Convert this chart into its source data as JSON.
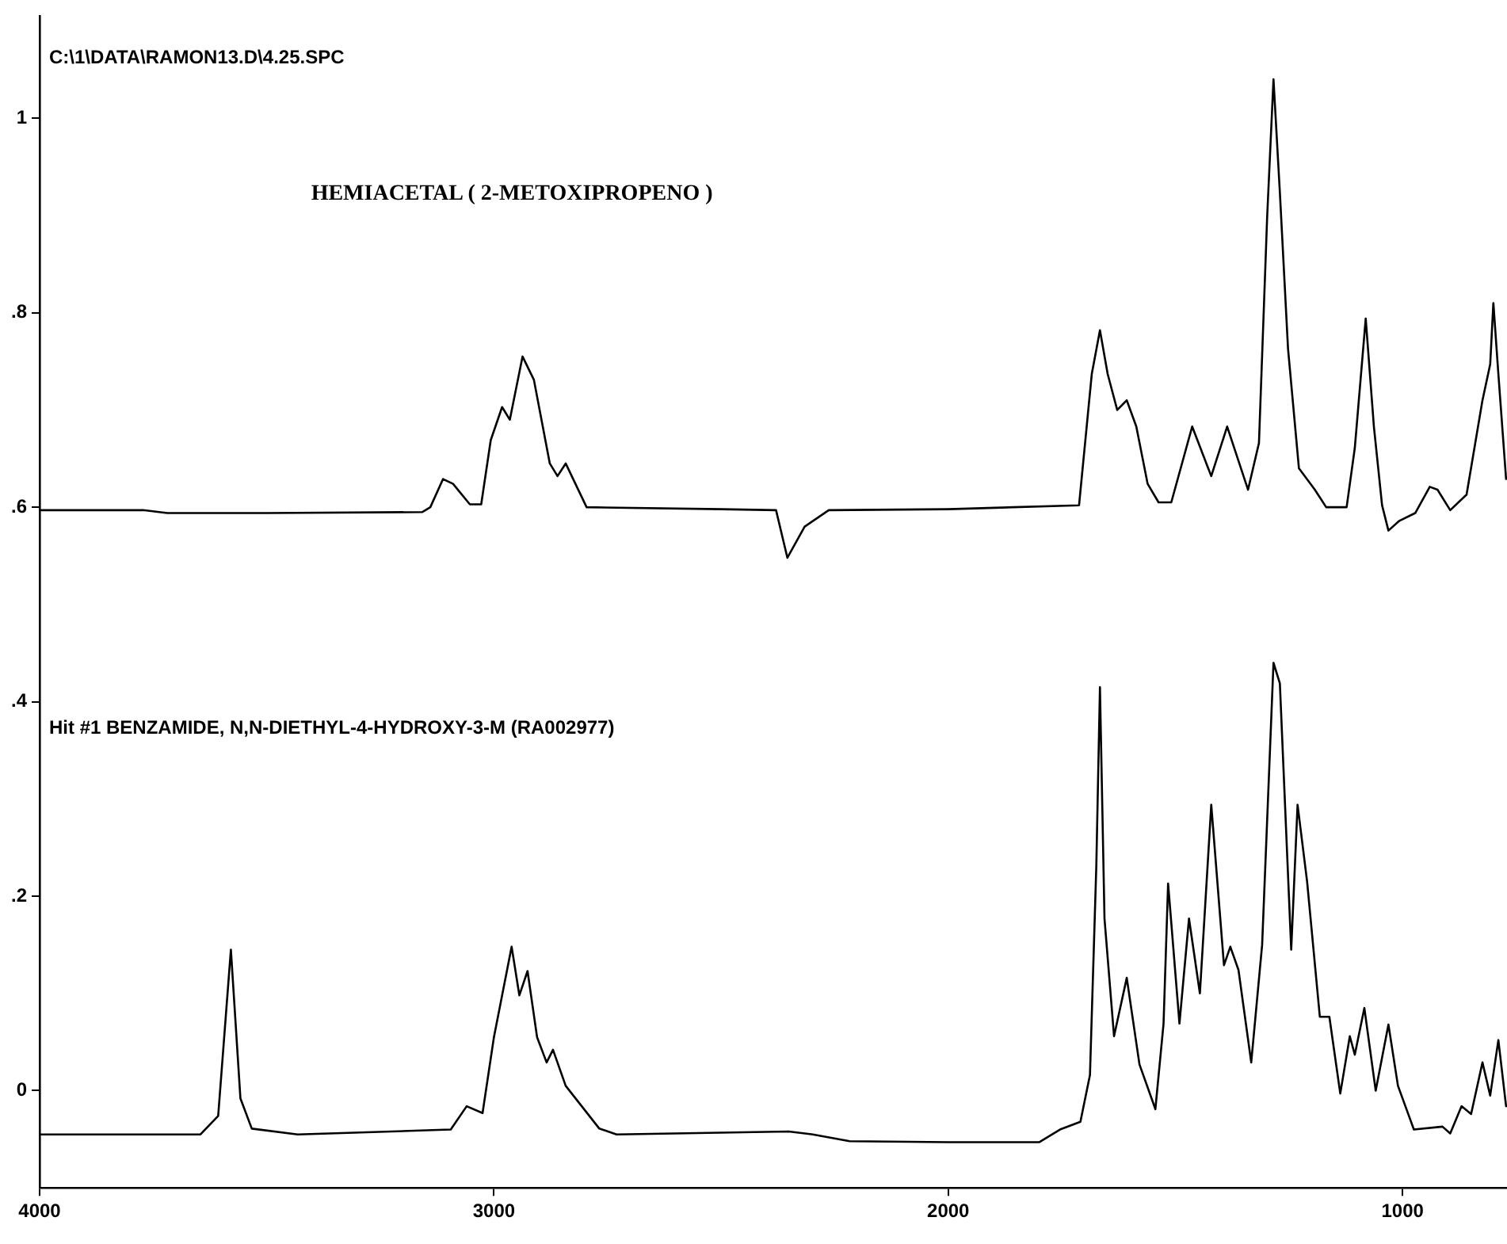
{
  "chart_data": {
    "type": "line",
    "title": "HEMIACETAL ( 2-METOXIPROPENO )",
    "annotations": [
      "C:\\1\\DATA\\RAMON13.D\\4.25.SPC",
      "Hit #1 BENZAMIDE, N,N-DIETHYL-4-HYDROXY-3-M (RA002977)"
    ],
    "xlim": [
      4000,
      770
    ],
    "xticks": [
      4000,
      3000,
      2000,
      1000
    ],
    "ylim": [
      -0.1,
      1.105
    ],
    "yticks": [
      {
        "value": 0,
        "label": "0"
      },
      {
        "value": 0.2,
        "label": ".2"
      },
      {
        "value": 0.4,
        "label": ".4"
      },
      {
        "value": 0.6,
        "label": ".6"
      },
      {
        "value": 0.8,
        "label": ".8"
      },
      {
        "value": 1,
        "label": "1"
      }
    ],
    "grid": false,
    "legend": false,
    "marker": "none",
    "line_style": "solid",
    "series": [
      {
        "color": "#000000",
        "x": [
          4000,
          3772,
          3719,
          3500,
          3158,
          3140,
          3112,
          3090,
          3053,
          3028,
          3007,
          2982,
          2965,
          2937,
          2912,
          2877,
          2860,
          2842,
          2796,
          2500,
          2379,
          2354,
          2316,
          2263,
          2000,
          1712,
          1684,
          1666,
          1649,
          1628,
          1607,
          1586,
          1561,
          1537,
          1509,
          1463,
          1421,
          1386,
          1340,
          1316,
          1298,
          1284,
          1270,
          1252,
          1228,
          1193,
          1168,
          1123,
          1105,
          1081,
          1063,
          1045,
          1031,
          1007,
          972,
          940,
          923,
          895,
          859,
          824,
          807,
          800,
          789,
          772
        ],
        "values": [
          0.597,
          0.597,
          0.594,
          0.594,
          0.595,
          0.6,
          0.629,
          0.624,
          0.603,
          0.603,
          0.669,
          0.703,
          0.69,
          0.755,
          0.731,
          0.645,
          0.632,
          0.645,
          0.6,
          0.598,
          0.597,
          0.548,
          0.58,
          0.597,
          0.598,
          0.602,
          0.737,
          0.782,
          0.737,
          0.7,
          0.71,
          0.683,
          0.624,
          0.605,
          0.605,
          0.683,
          0.632,
          0.683,
          0.618,
          0.666,
          0.898,
          1.04,
          0.924,
          0.763,
          0.64,
          0.618,
          0.6,
          0.6,
          0.661,
          0.794,
          0.683,
          0.602,
          0.576,
          0.586,
          0.594,
          0.621,
          0.618,
          0.597,
          0.613,
          0.71,
          0.747,
          0.81,
          0.737,
          0.629
        ]
      },
      {
        "color": "#000000",
        "x": [
          4000,
          3646,
          3607,
          3579,
          3558,
          3533,
          3432,
          3095,
          3060,
          3025,
          3000,
          2961,
          2944,
          2926,
          2905,
          2884,
          2870,
          2842,
          2768,
          2730,
          2351,
          2298,
          2217,
          2000,
          1800,
          1754,
          1709,
          1688,
          1674,
          1666,
          1656,
          1635,
          1607,
          1579,
          1544,
          1526,
          1516,
          1491,
          1470,
          1446,
          1421,
          1393,
          1379,
          1361,
          1333,
          1309,
          1284,
          1270,
          1245,
          1231,
          1210,
          1182,
          1161,
          1137,
          1116,
          1105,
          1084,
          1059,
          1031,
          1010,
          975,
          912,
          895,
          870,
          849,
          824,
          807,
          789,
          772
        ],
        "values": [
          -0.045,
          -0.045,
          -0.026,
          0.145,
          -0.008,
          -0.039,
          -0.045,
          -0.04,
          -0.016,
          -0.023,
          0.055,
          0.148,
          0.098,
          0.123,
          0.055,
          0.029,
          0.042,
          0.005,
          -0.039,
          -0.045,
          -0.042,
          -0.045,
          -0.052,
          -0.053,
          -0.053,
          -0.04,
          -0.032,
          0.016,
          0.231,
          0.415,
          0.177,
          0.056,
          0.116,
          0.027,
          -0.019,
          0.069,
          0.213,
          0.069,
          0.177,
          0.1,
          0.294,
          0.129,
          0.148,
          0.124,
          0.029,
          0.15,
          0.44,
          0.419,
          0.145,
          0.294,
          0.215,
          0.076,
          0.076,
          -0.003,
          0.056,
          0.037,
          0.085,
          0.0,
          0.068,
          0.005,
          -0.04,
          -0.037,
          -0.044,
          -0.016,
          -0.024,
          0.029,
          -0.005,
          0.052,
          -0.016
        ]
      }
    ]
  }
}
